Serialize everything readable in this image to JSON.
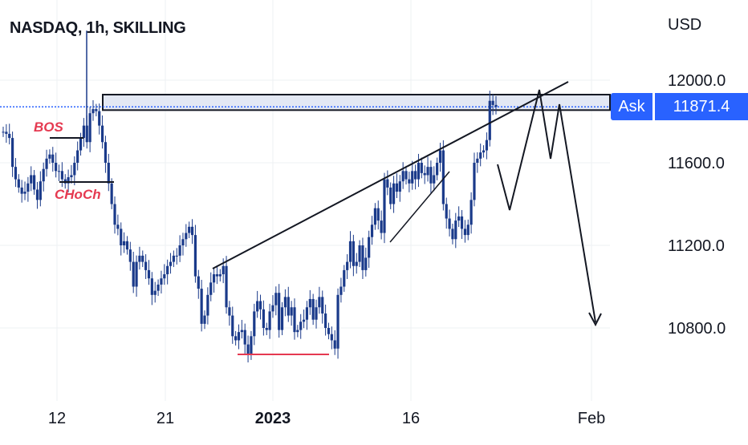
{
  "header": {
    "title": "NASDAQ, 1h, SKILLING",
    "unit": "USD"
  },
  "ask": {
    "label": "Ask",
    "value": "11871.4"
  },
  "colors": {
    "candle": "#1a3a8a",
    "grid": "#eef0f3",
    "text": "#131722",
    "annotation": "#e53950",
    "accent": "#2962ff"
  },
  "chart_data": {
    "type": "line",
    "y_ticks": [
      "12000.0",
      "11600.0",
      "11200.0",
      "10800.0"
    ],
    "y_tick_values": [
      12000,
      11600,
      11200,
      10800
    ],
    "x_ticks": [
      "12",
      "21",
      "2023",
      "16",
      "Feb"
    ],
    "annotations": [
      "BOS",
      "CHoCh"
    ],
    "series": [
      {
        "values": [
          11750,
          11740,
          11720,
          11580,
          11520,
          11480,
          11450,
          11460,
          11500,
          11540,
          11470,
          11420,
          11510,
          11570,
          11620,
          11640,
          11600,
          11560,
          11560,
          11520,
          11500,
          11530,
          11540,
          11600,
          11660,
          11720,
          11780,
          11700,
          11840,
          11860,
          11850,
          11780,
          11700,
          11600,
          11500,
          11400,
          11300,
          11280,
          11200,
          11220,
          11180,
          11120,
          11000,
          11120,
          11150,
          11120,
          11080,
          11040,
          10960,
          10980,
          11010,
          11040,
          11060,
          11100,
          11120,
          11150,
          11150,
          11200,
          11230,
          11260,
          11290,
          11250,
          11050,
          10990,
          10820,
          10860,
          10960,
          11020,
          11060,
          11050,
          11060,
          11100,
          10900,
          10860,
          10760,
          10740,
          10780,
          10790,
          10720,
          10670,
          10760,
          10880,
          10930,
          10890,
          10800,
          10790,
          10880,
          10910,
          10970,
          10790,
          10900,
          10950,
          10860,
          10900,
          10780,
          10790,
          10830,
          10840,
          10900,
          10940,
          10840,
          10900,
          10950,
          10870,
          10800,
          10770,
          10740,
          10700,
          10960,
          11000,
          11080,
          11120,
          11220,
          11100,
          11120,
          11200,
          11080,
          11140,
          11240,
          11300,
          11380,
          11320,
          11260,
          11520,
          11480,
          11400,
          11500,
          11460,
          11510,
          11560,
          11520,
          11500,
          11560,
          11520,
          11600,
          11550,
          11540,
          11580,
          11500,
          11540,
          11600,
          11660,
          11400,
          11330,
          11280,
          11230,
          11320,
          11340,
          11280,
          11250,
          11300,
          11420,
          11600,
          11620,
          11650,
          11660,
          11710,
          11900,
          11880,
          11871
        ]
      }
    ],
    "ylim": [
      10600,
      12150
    ],
    "grid": true
  }
}
